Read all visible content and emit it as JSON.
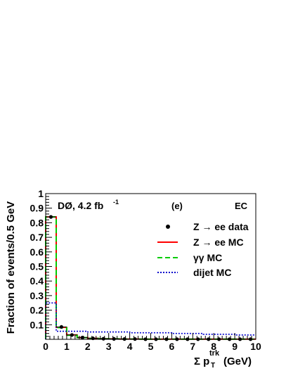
{
  "chart_data": {
    "type": "line",
    "panel": "(e)",
    "region": "EC",
    "experiment": "DØ, 4.2 fb",
    "lumi_exp": "-1",
    "ylabel": "Fraction of events/0.5 GeV",
    "xlabel": "Σ p",
    "xlabel_sub": "T",
    "xlabel_sup": "trk",
    "xlabel_unit": "(GeV)",
    "xlim": [
      0,
      10
    ],
    "ylim": [
      0,
      1
    ],
    "xticks": [
      "0",
      "1",
      "2",
      "3",
      "4",
      "5",
      "6",
      "7",
      "8",
      "9",
      "10"
    ],
    "yticks": [
      "0.1",
      "0.2",
      "0.3",
      "0.4",
      "0.5",
      "0.6",
      "0.7",
      "0.8",
      "0.9",
      "1"
    ],
    "bin_edges": [
      0,
      0.5,
      1,
      1.5,
      2,
      2.5,
      3,
      3.5,
      4,
      4.5,
      5,
      5.5,
      6,
      6.5,
      7,
      7.5,
      8,
      8.5,
      9,
      9.5,
      10
    ],
    "legend": {
      "data": "Z → ee data",
      "zee_mc": "Z → ee MC",
      "gg_mc": "γγ MC",
      "dijet_mc": "dijet MC"
    },
    "series": [
      {
        "name": "Z → ee data",
        "style": "points",
        "color": "#000000",
        "values": [
          0.84,
          0.085,
          0.03,
          0.012,
          0.007,
          0.004,
          0.003,
          0.002,
          0.002,
          0.001,
          0.001,
          0.001,
          0.001,
          0.001,
          0.001,
          0.001,
          0.001,
          0.001,
          0.001,
          0.001
        ]
      },
      {
        "name": "Z → ee MC",
        "style": "solid",
        "color": "#ff0000",
        "values": [
          0.84,
          0.082,
          0.03,
          0.012,
          0.007,
          0.004,
          0.003,
          0.002,
          0.002,
          0.001,
          0.001,
          0.001,
          0.001,
          0.001,
          0.001,
          0.001,
          0.001,
          0.001,
          0.001,
          0.001
        ]
      },
      {
        "name": "γγ MC",
        "style": "dashed",
        "color": "#00cc00",
        "values": [
          0.84,
          0.08,
          0.028,
          0.012,
          0.007,
          0.004,
          0.003,
          0.002,
          0.002,
          0.001,
          0.001,
          0.001,
          0.001,
          0.001,
          0.001,
          0.001,
          0.001,
          0.001,
          0.001,
          0.001
        ]
      },
      {
        "name": "dijet MC",
        "style": "dotted",
        "color": "#0000cc",
        "values": [
          0.25,
          0.055,
          0.055,
          0.055,
          0.05,
          0.05,
          0.05,
          0.05,
          0.045,
          0.045,
          0.045,
          0.045,
          0.04,
          0.04,
          0.04,
          0.035,
          0.035,
          0.035,
          0.03,
          0.03
        ]
      }
    ]
  }
}
